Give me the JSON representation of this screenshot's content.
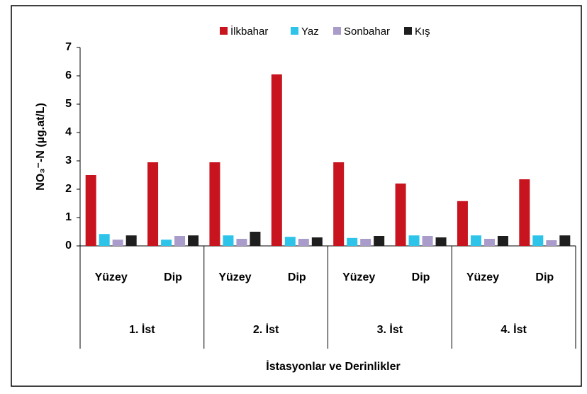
{
  "chart_data": {
    "type": "bar",
    "x_label": "İstasyonlar ve Derinlikler",
    "y_label": "NO₃⁻-N (µg.at/L)",
    "categories": [
      "Yüzey",
      "Dip",
      "Yüzey",
      "Dip",
      "Yüzey",
      "Dip",
      "Yüzey",
      "Dip"
    ],
    "groups": [
      "1. İst",
      "2. İst",
      "3. İst",
      "4. İst"
    ],
    "series": [
      {
        "name": "İlkbahar",
        "color": "#c8141e",
        "values": [
          2.5,
          2.95,
          2.95,
          6.05,
          2.95,
          2.2,
          1.58,
          2.35
        ]
      },
      {
        "name": "Yaz",
        "color": "#2ec4ea",
        "values": [
          0.42,
          0.22,
          0.37,
          0.32,
          0.28,
          0.37,
          0.37,
          0.37
        ]
      },
      {
        "name": "Sonbahar",
        "color": "#a99cca",
        "values": [
          0.22,
          0.35,
          0.25,
          0.25,
          0.25,
          0.35,
          0.25,
          0.2
        ]
      },
      {
        "name": "Kış",
        "color": "#1e1e1e",
        "values": [
          0.37,
          0.37,
          0.5,
          0.3,
          0.35,
          0.3,
          0.35,
          0.37
        ]
      }
    ],
    "ylim": [
      0,
      7
    ],
    "yticks": [
      0,
      1,
      2,
      3,
      4,
      5,
      6,
      7
    ],
    "grid": false,
    "legend": "top"
  }
}
